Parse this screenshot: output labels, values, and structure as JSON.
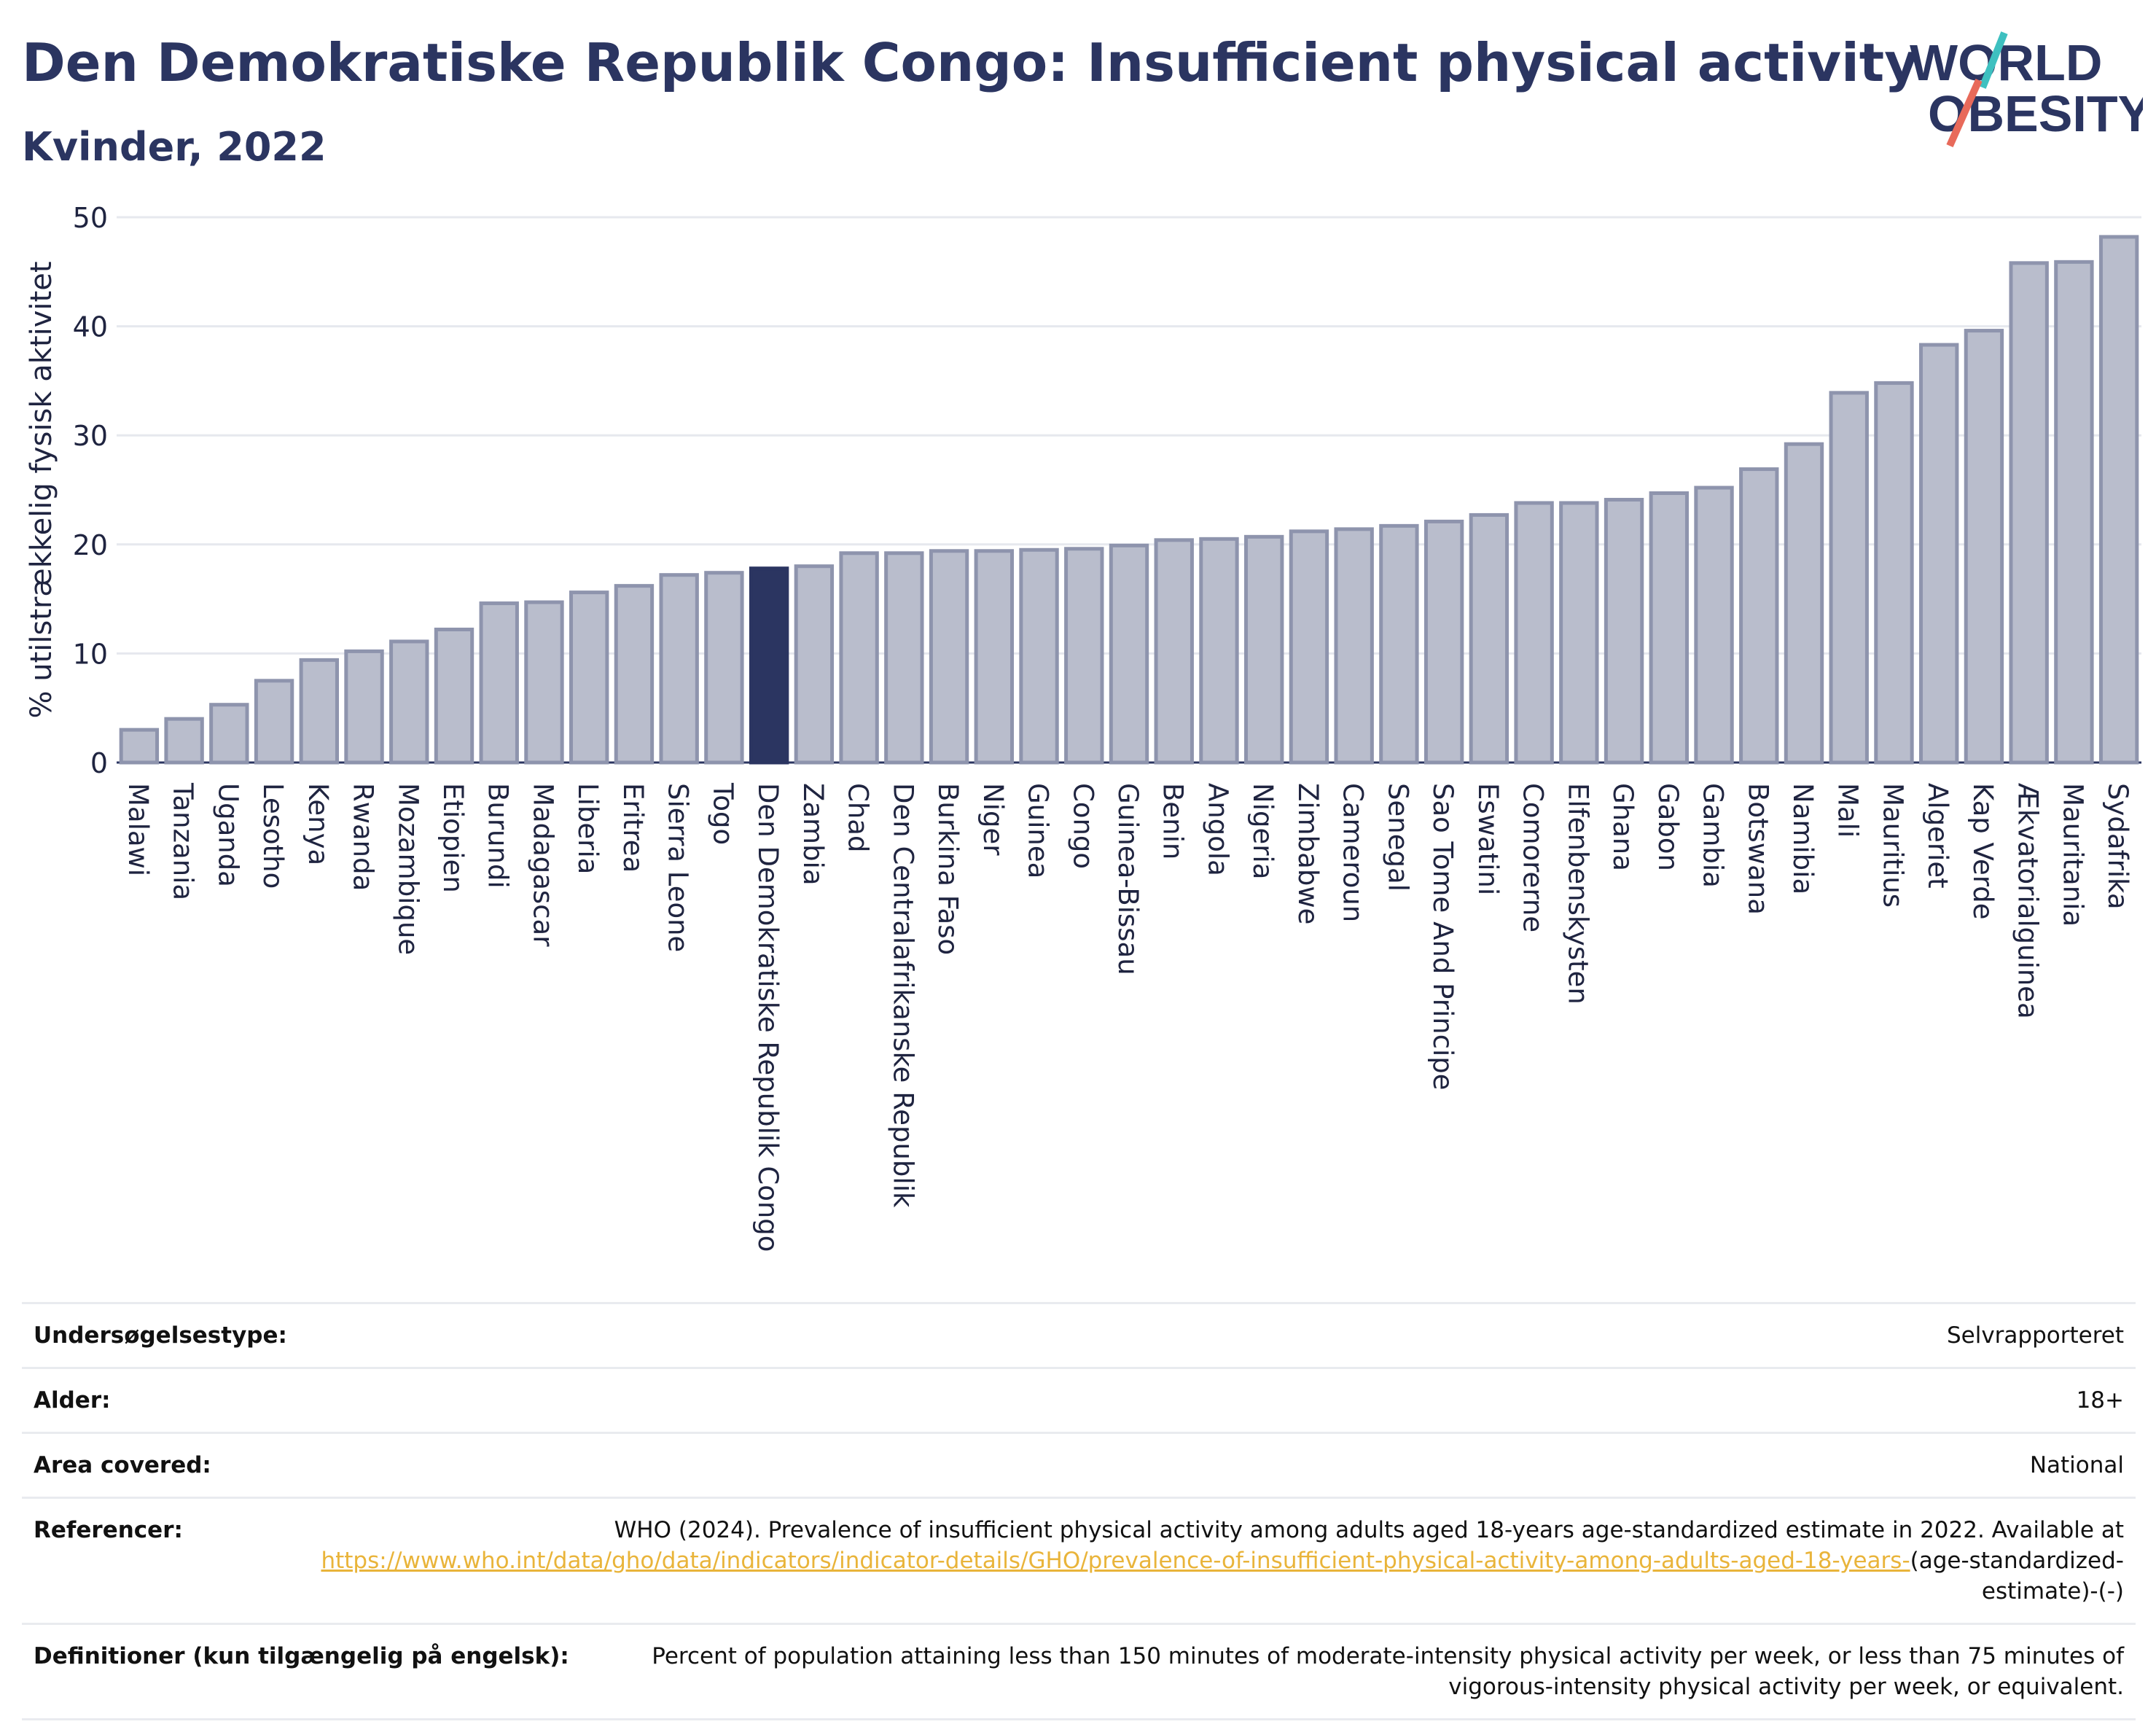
{
  "header": {
    "title": "Den Demokratiske Republik Congo: Insufficient physical activity",
    "subtitle": "Kvinder, 2022",
    "logo_line1": "WORLD",
    "logo_line2": "OBESITY"
  },
  "colors": {
    "bar": "#b9bdcc",
    "bar_stroke": "#8e94ad",
    "highlight": "#2b3561",
    "grid": "#e6e8ee",
    "logo_teal": "#3ec0c0",
    "logo_red": "#e86a5a"
  },
  "chart_data": {
    "type": "bar",
    "title": "Den Demokratiske Republik Congo: Insufficient physical activity",
    "subtitle": "Kvinder, 2022",
    "ylabel": "% utilstrækkelig fysisk aktivitet",
    "xlabel": "",
    "ylim": [
      0,
      50
    ],
    "yticks": [
      0,
      10,
      20,
      30,
      40,
      50
    ],
    "grid": true,
    "highlight": "Den Demokratiske Republik Congo",
    "categories": [
      "Malawi",
      "Tanzania",
      "Uganda",
      "Lesotho",
      "Kenya",
      "Rwanda",
      "Mozambique",
      "Etiopien",
      "Burundi",
      "Madagascar",
      "Liberia",
      "Eritrea",
      "Sierra Leone",
      "Togo",
      "Den Demokratiske Republik Congo",
      "Zambia",
      "Chad",
      "Den Centralafrikanske Republik",
      "Burkina Faso",
      "Niger",
      "Guinea",
      "Congo",
      "Guinea-Bissau",
      "Benin",
      "Angola",
      "Nigeria",
      "Zimbabwe",
      "Cameroun",
      "Senegal",
      "Sao Tome And Principe",
      "Eswatini",
      "Comorerne",
      "Elfenbenskysten",
      "Ghana",
      "Gabon",
      "Gambia",
      "Botswana",
      "Namibia",
      "Mali",
      "Mauritius",
      "Algeriet",
      "Kap Verde",
      "Ækvatorialguinea",
      "Mauritania",
      "Sydafrika"
    ],
    "values": [
      3.0,
      4.0,
      5.3,
      7.5,
      9.4,
      10.2,
      11.1,
      12.2,
      14.6,
      14.7,
      15.6,
      16.2,
      17.2,
      17.4,
      17.8,
      18.0,
      19.2,
      19.2,
      19.4,
      19.4,
      19.5,
      19.6,
      19.9,
      20.4,
      20.5,
      20.7,
      21.2,
      21.4,
      21.7,
      22.1,
      22.7,
      23.8,
      23.8,
      24.1,
      24.7,
      25.2,
      26.9,
      29.2,
      33.9,
      34.8,
      38.3,
      39.6,
      45.8,
      45.9,
      48.2
    ]
  },
  "info": {
    "survey_label": "Undersøgelsestype:",
    "survey_value": "Selvrapporteret",
    "age_label": "Alder:",
    "age_value": "18+",
    "area_label": "Area covered:",
    "area_value": "National",
    "ref_label": "Referencer:",
    "ref_text": "WHO (2024). Prevalence of insufficient physical activity among adults aged 18-years age-standardized estimate in 2022. Available at",
    "ref_link": "https://www.who.int/data/gho/data/indicators/indicator-details/GHO/prevalence-of-insufficient-physical-activity-among-adults-aged-18-years-",
    "ref_suffix": "(age-standardized-estimate)-(-)",
    "def_label": "Definitioner (kun tilgængelig på engelsk):",
    "def_value": "Percent of population attaining less than 150 minutes of moderate-intensity physical activity per week, or less than 75 minutes of vigorous-intensity physical activity per week, or equivalent."
  }
}
